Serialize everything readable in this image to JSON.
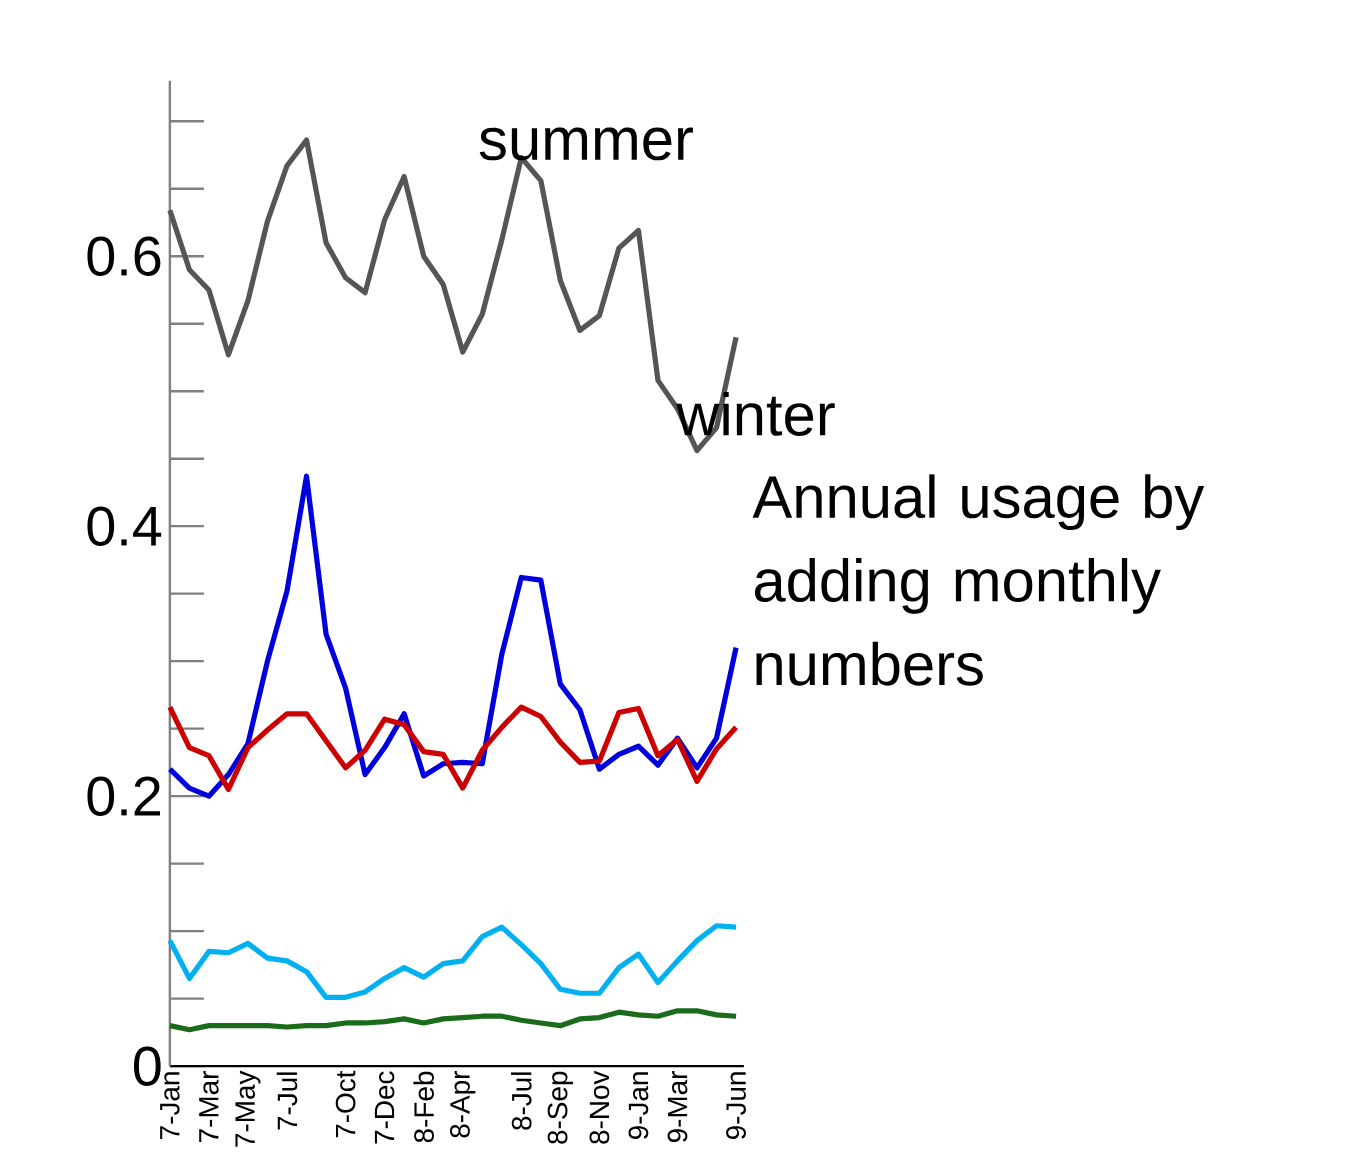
{
  "chart_data": {
    "type": "line",
    "categories": [
      "7-Jan",
      null,
      "7-Mar",
      null,
      "7-May",
      null,
      "7-Jul",
      null,
      null,
      "7-Oct",
      null,
      "7-Dec",
      null,
      "8-Feb",
      null,
      "8-Apr",
      null,
      null,
      "8-Jul",
      null,
      "8-Sep",
      null,
      "8-Nov",
      null,
      "9-Jan",
      null,
      "9-Mar",
      null,
      null,
      "9-Jun"
    ],
    "series": [
      {
        "color": "#555555",
        "values": [
          0.634,
          0.59,
          0.575,
          0.527,
          0.567,
          0.626,
          0.667,
          0.686,
          0.61,
          0.584,
          0.573,
          0.627,
          0.659,
          0.6,
          0.579,
          0.529,
          0.557,
          0.612,
          0.673,
          0.656,
          0.582,
          0.545,
          0.556,
          0.606,
          0.619,
          0.508,
          0.487,
          0.456,
          0.473,
          0.54
        ]
      },
      {
        "color": "#0000dd",
        "values": [
          0.22,
          0.206,
          0.2,
          0.216,
          0.239,
          0.3,
          0.352,
          0.437,
          0.32,
          0.28,
          0.216,
          0.236,
          0.261,
          0.215,
          0.224,
          0.225,
          0.224,
          0.305,
          0.362,
          0.36,
          0.283,
          0.264,
          0.22,
          0.231,
          0.237,
          0.223,
          0.243,
          0.221,
          0.243,
          0.31
        ]
      },
      {
        "color": "#cc0000",
        "values": [
          0.266,
          0.236,
          0.23,
          0.205,
          0.236,
          0.249,
          0.261,
          0.261,
          0.241,
          0.221,
          0.234,
          0.257,
          0.253,
          0.233,
          0.231,
          0.206,
          0.234,
          0.251,
          0.266,
          0.259,
          0.24,
          0.225,
          0.226,
          0.262,
          0.265,
          0.23,
          0.242,
          0.211,
          0.235,
          0.251
        ]
      },
      {
        "color": "#00b0f0",
        "values": [
          0.093,
          0.065,
          0.085,
          0.084,
          0.091,
          0.08,
          0.078,
          0.07,
          0.051,
          0.051,
          0.055,
          0.065,
          0.073,
          0.066,
          0.076,
          0.078,
          0.096,
          0.103,
          0.09,
          0.076,
          0.057,
          0.054,
          0.054,
          0.073,
          0.083,
          0.062,
          0.078,
          0.093,
          0.104,
          0.103
        ]
      },
      {
        "color": "#1a6b1a",
        "values": [
          0.03,
          0.027,
          0.03,
          0.03,
          0.03,
          0.03,
          0.029,
          0.03,
          0.03,
          0.032,
          0.032,
          0.033,
          0.035,
          0.032,
          0.035,
          0.036,
          0.037,
          0.037,
          0.034,
          0.032,
          0.03,
          0.035,
          0.036,
          0.04,
          0.038,
          0.037,
          0.041,
          0.041,
          0.038,
          0.037
        ]
      }
    ],
    "ylim": [
      0,
      0.73
    ],
    "yticks": [
      0,
      0.2,
      0.4,
      0.6
    ],
    "line_style": "solid",
    "annotations": [
      "summer",
      "winter",
      "Annual usage by adding monthly numbers"
    ]
  }
}
